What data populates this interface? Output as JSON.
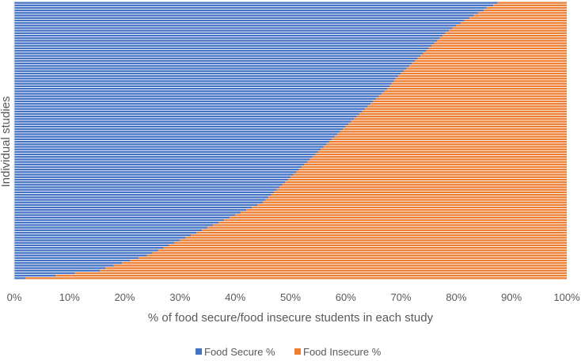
{
  "chart_data": {
    "type": "bar",
    "orientation": "horizontal",
    "stacked": true,
    "normalized_percent": true,
    "title": "",
    "xlabel": "% of food secure/food insecure students in each study",
    "ylabel": "Individual studies",
    "xlim": [
      0,
      100
    ],
    "x_ticks": [
      "0%",
      "10%",
      "20%",
      "30%",
      "40%",
      "50%",
      "60%",
      "70%",
      "80%",
      "90%",
      "100%"
    ],
    "grid": false,
    "legend_position": "bottom",
    "colors": {
      "secure": "#4472C4",
      "insecure": "#ED7D31"
    },
    "series": [
      {
        "name": "Food Secure %",
        "color": "#4472C4"
      },
      {
        "name": "Food Insecure %",
        "color": "#ED7D31"
      }
    ],
    "study_count": 110,
    "food_secure_percent": [
      87.5,
      86.7,
      85.5,
      85.0,
      84.0,
      83.2,
      82.4,
      81.5,
      80.8,
      80.0,
      79.3,
      78.7,
      78.0,
      77.5,
      77.0,
      76.5,
      76.0,
      75.5,
      75.0,
      74.5,
      74.0,
      73.5,
      73.0,
      72.5,
      72.0,
      71.5,
      71.0,
      70.5,
      70.0,
      69.5,
      69.0,
      68.7,
      68.3,
      68.0,
      67.5,
      67.0,
      66.5,
      66.0,
      65.5,
      65.0,
      64.5,
      64.0,
      63.5,
      63.0,
      62.5,
      62.0,
      61.5,
      61.0,
      60.5,
      60.0,
      59.5,
      59.0,
      58.5,
      58.0,
      57.5,
      57.0,
      56.5,
      56.0,
      55.5,
      55.0,
      54.5,
      54.0,
      53.5,
      53.0,
      52.5,
      52.0,
      51.5,
      51.0,
      50.5,
      50.0,
      49.5,
      49.0,
      48.5,
      48.0,
      47.5,
      47.0,
      46.5,
      46.0,
      45.5,
      45.0,
      44.0,
      43.0,
      42.0,
      41.0,
      40.0,
      39.0,
      38.0,
      37.0,
      36.0,
      35.0,
      34.0,
      33.0,
      32.0,
      31.0,
      30.0,
      29.0,
      28.0,
      27.0,
      26.0,
      25.0,
      24.0,
      22.5,
      21.0,
      19.5,
      18.0,
      16.5,
      15.5,
      11.0,
      7.5,
      2.0
    ]
  }
}
